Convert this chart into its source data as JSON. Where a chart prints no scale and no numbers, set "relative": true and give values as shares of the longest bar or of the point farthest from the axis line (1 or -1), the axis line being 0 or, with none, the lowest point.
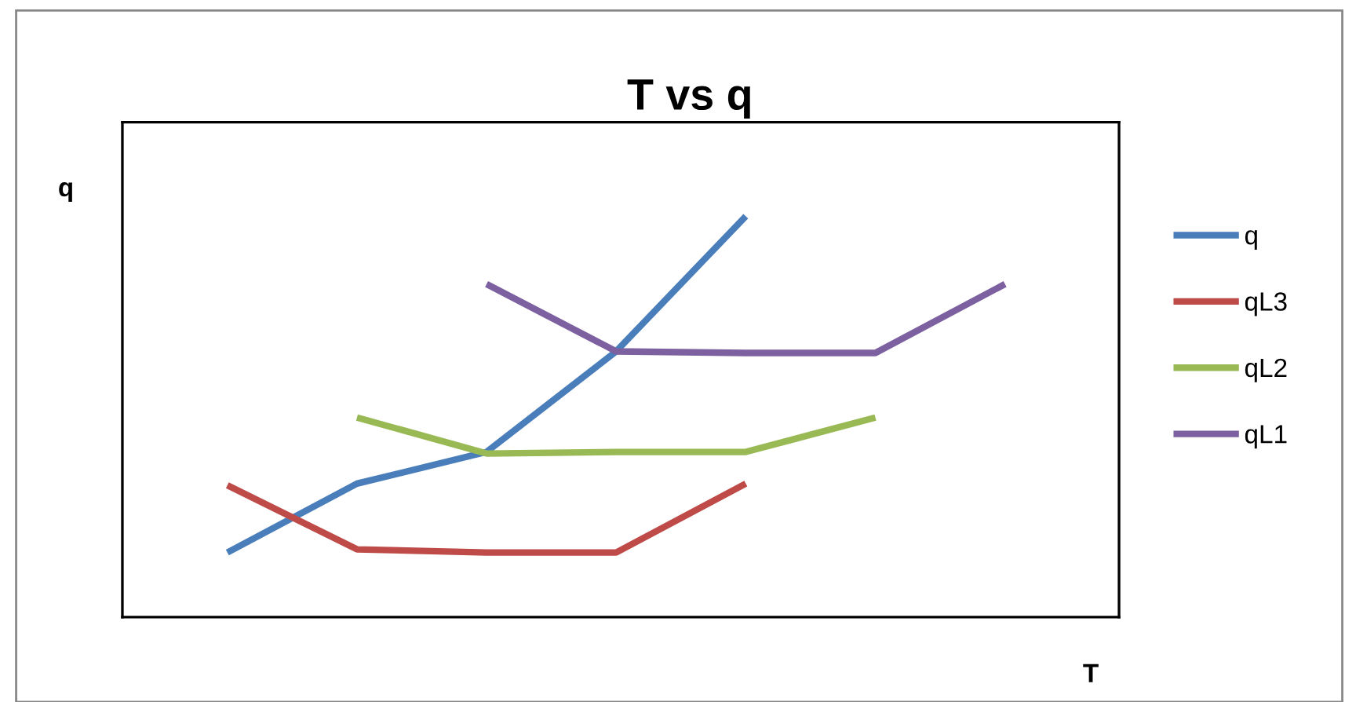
{
  "chart_data": {
    "type": "line",
    "title": "T vs q",
    "xlabel": "T",
    "ylabel": "q",
    "relative": true,
    "legend": "right",
    "grid": false,
    "marker": "none",
    "line_style": "solid",
    "categories": [
      null,
      null,
      null,
      null,
      null,
      null,
      null
    ],
    "series": [
      {
        "name": "q",
        "color": "#4a7ebb",
        "values": [
          0.161,
          0.333,
          0.412,
          0.663,
          1.0,
          null,
          null
        ]
      },
      {
        "name": "qL3",
        "color": "#be4b48",
        "values": [
          0.329,
          0.169,
          0.161,
          0.161,
          0.333,
          null,
          null
        ]
      },
      {
        "name": "qL2",
        "color": "#98b954",
        "values": [
          null,
          0.498,
          0.408,
          0.412,
          0.412,
          0.498,
          null
        ]
      },
      {
        "name": "qL1",
        "color": "#7d60a0",
        "values": [
          null,
          null,
          0.831,
          0.663,
          0.659,
          0.659,
          0.831
        ]
      }
    ]
  }
}
